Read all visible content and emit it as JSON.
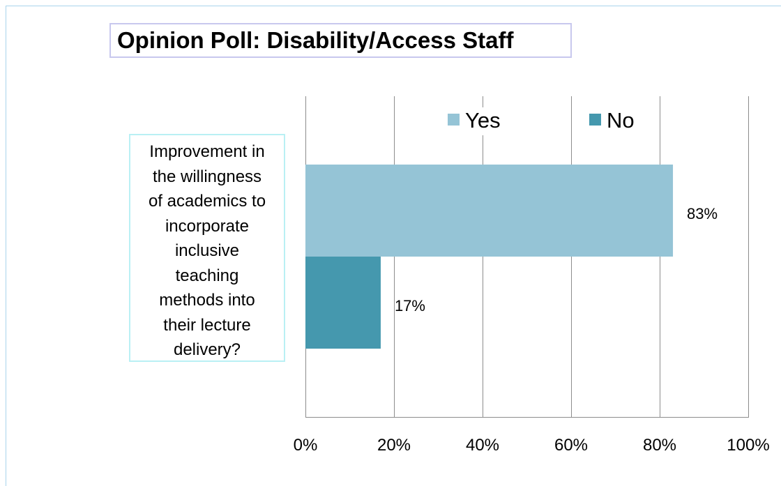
{
  "title": "Opinion Poll: Disability/Access Staff",
  "category_lines": [
    "Improvement in",
    "the willingness",
    "of academics to",
    "incorporate",
    "inclusive",
    "teaching",
    "methods into",
    "their lecture",
    "delivery?"
  ],
  "chart_data": {
    "type": "bar",
    "orientation": "horizontal",
    "categories": [
      "Improvement in the willingness of academics to incorporate inclusive teaching methods into their lecture delivery?"
    ],
    "series": [
      {
        "name": "Yes",
        "values": [
          83
        ],
        "label": "83%",
        "color": "#95c4d6"
      },
      {
        "name": "No",
        "values": [
          17
        ],
        "label": "17%",
        "color": "#4598ae"
      }
    ],
    "x_ticks": [
      "0%",
      "20%",
      "40%",
      "60%",
      "80%",
      "100%"
    ],
    "x_tick_values": [
      0,
      20,
      40,
      60,
      80,
      100
    ],
    "xlim": [
      0,
      100
    ],
    "unit": "%",
    "grid": true,
    "legend_position": "top"
  }
}
